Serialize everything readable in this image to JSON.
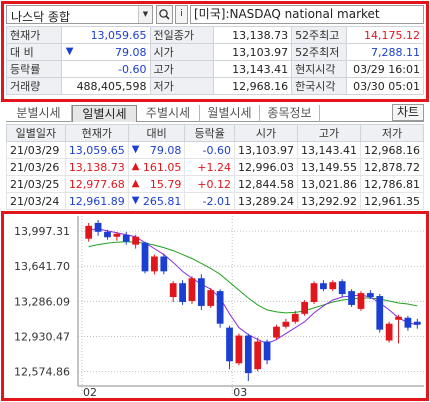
{
  "search": {
    "selected_stock": "나스닥 종합",
    "market_name": "[미국]:NASDAQ national market",
    "info_label": "i"
  },
  "quote": {
    "rows": [
      {
        "l1": "현재가",
        "v1": "13,059.65",
        "l2": "전일종가",
        "v2": "13,138.73",
        "l3": "52주최고",
        "v3": "14,175.12"
      },
      {
        "l1": "대  비",
        "v1": "79.08",
        "l2": "시가",
        "v2": "13,103.97",
        "l3": "52주최저",
        "v3": "7,288.11"
      },
      {
        "l1": "등락률",
        "v1": "-0.60",
        "l2": "고가",
        "v2": "13,143.41",
        "l3": "현지시각",
        "v3": "03/29 16:01"
      },
      {
        "l1": "거래량",
        "v1": "488,405,598",
        "l2": "저가",
        "v2": "12,968.16",
        "l3": "한국시각",
        "v3": "03/30 05:01"
      }
    ],
    "change_arrow": "▼"
  },
  "tabs": {
    "items": [
      "분별시세",
      "일별시세",
      "주별시세",
      "월별시세",
      "종목정보"
    ],
    "chart_button": "차트"
  },
  "daily": {
    "headers": [
      "일별일자",
      "현재가",
      "대비",
      "등락율",
      "시가",
      "고가",
      "저가"
    ],
    "rows": [
      {
        "date": "21/03/29",
        "price": "13,059.65",
        "arrow": "▼",
        "change": "79.08",
        "rate": "-0.60",
        "open": "13,103.97",
        "high": "13,143.41",
        "low": "12,968.16",
        "dir": "down"
      },
      {
        "date": "21/03/26",
        "price": "13,138.73",
        "arrow": "▲",
        "change": "161.05",
        "rate": "+1.24",
        "open": "12,996.03",
        "high": "13,149.55",
        "low": "12,878.72",
        "dir": "up"
      },
      {
        "date": "21/03/25",
        "price": "12,977.68",
        "arrow": "▲",
        "change": "15.79",
        "rate": "+0.12",
        "open": "12,844.58",
        "high": "13,021.86",
        "low": "12,786.81",
        "dir": "up"
      },
      {
        "date": "21/03/24",
        "price": "12,961.89",
        "arrow": "▼",
        "change": "265.81",
        "rate": "-2.01",
        "open": "13,289.24",
        "high": "13,292.92",
        "low": "12,961.35",
        "dir": "down"
      }
    ]
  },
  "colors": {
    "up": "#e0161c",
    "down": "#1b3fd0",
    "ma_short": "#8a2be2",
    "ma_long": "#1fa21f"
  },
  "chart_data": {
    "type": "candlestick",
    "y_ticks": [
      "13,997.31",
      "13,641.70",
      "13,286.09",
      "12,930.47",
      "12,574.86"
    ],
    "x_labels": [
      "02",
      "03"
    ],
    "ylim": [
      12450,
      14150
    ],
    "candles": [
      {
        "o": 13920,
        "c": 14050,
        "h": 14080,
        "l": 13890
      },
      {
        "o": 14080,
        "c": 13990,
        "h": 14110,
        "l": 13950
      },
      {
        "o": 13990,
        "c": 13935,
        "h": 14010,
        "l": 13910
      },
      {
        "o": 13940,
        "c": 13970,
        "h": 13985,
        "l": 13900
      },
      {
        "o": 13960,
        "c": 13890,
        "h": 13990,
        "l": 13860
      },
      {
        "o": 13860,
        "c": 13940,
        "h": 13960,
        "l": 13820
      },
      {
        "o": 13880,
        "c": 13590,
        "h": 13890,
        "l": 13570
      },
      {
        "o": 13590,
        "c": 13740,
        "h": 13760,
        "l": 13560
      },
      {
        "o": 13740,
        "c": 13590,
        "h": 13770,
        "l": 13560
      },
      {
        "o": 13330,
        "c": 13470,
        "h": 13490,
        "l": 13280
      },
      {
        "o": 13470,
        "c": 13280,
        "h": 13500,
        "l": 13250
      },
      {
        "o": 13290,
        "c": 13520,
        "h": 13540,
        "l": 13260
      },
      {
        "o": 13520,
        "c": 13240,
        "h": 13560,
        "l": 13200
      },
      {
        "o": 13240,
        "c": 13400,
        "h": 13420,
        "l": 13220
      },
      {
        "o": 13390,
        "c": 13060,
        "h": 13410,
        "l": 13020
      },
      {
        "o": 13020,
        "c": 12680,
        "h": 13040,
        "l": 12600
      },
      {
        "o": 12660,
        "c": 12940,
        "h": 12960,
        "l": 12640
      },
      {
        "o": 12940,
        "c": 12560,
        "h": 12960,
        "l": 12480
      },
      {
        "o": 12600,
        "c": 12880,
        "h": 12920,
        "l": 12580
      },
      {
        "o": 12880,
        "c": 12690,
        "h": 12900,
        "l": 12650
      },
      {
        "o": 12920,
        "c": 13030,
        "h": 13050,
        "l": 12900
      },
      {
        "o": 13030,
        "c": 13080,
        "h": 13110,
        "l": 13010
      },
      {
        "o": 13080,
        "c": 13160,
        "h": 13190,
        "l": 13060
      },
      {
        "o": 13160,
        "c": 13280,
        "h": 13300,
        "l": 13140
      },
      {
        "o": 13280,
        "c": 13470,
        "h": 13490,
        "l": 13260
      },
      {
        "o": 13470,
        "c": 13410,
        "h": 13500,
        "l": 13390
      },
      {
        "o": 13410,
        "c": 13480,
        "h": 13500,
        "l": 13390
      },
      {
        "o": 13490,
        "c": 13360,
        "h": 13510,
        "l": 13330
      },
      {
        "o": 13390,
        "c": 13250,
        "h": 13410,
        "l": 13230
      },
      {
        "o": 13210,
        "c": 13370,
        "h": 13390,
        "l": 13190
      },
      {
        "o": 13370,
        "c": 13330,
        "h": 13400,
        "l": 13310
      },
      {
        "o": 13340,
        "c": 13000,
        "h": 13360,
        "l": 12970
      },
      {
        "o": 12890,
        "c": 13060,
        "h": 13080,
        "l": 12870
      },
      {
        "o": 13100,
        "c": 13130,
        "h": 13150,
        "l": 12860
      },
      {
        "o": 13120,
        "c": 13020,
        "h": 13140,
        "l": 12990
      },
      {
        "o": 13080,
        "c": 13050,
        "h": 13110,
        "l": 13010
      }
    ],
    "ma_short": [
      14010,
      14020,
      14000,
      13980,
      13960,
      13940,
      13880,
      13820,
      13760,
      13680,
      13590,
      13520,
      13460,
      13410,
      13320,
      13160,
      13020,
      12950,
      12900,
      12860,
      12900,
      12960,
      13020,
      13080,
      13170,
      13240,
      13300,
      13330,
      13340,
      13350,
      13330,
      13270,
      13200,
      13120,
      13070,
      13050
    ],
    "ma_long": [
      13840,
      13860,
      13875,
      13885,
      13890,
      13885,
      13875,
      13855,
      13830,
      13800,
      13760,
      13720,
      13670,
      13620,
      13560,
      13480,
      13400,
      13320,
      13250,
      13200,
      13180,
      13170,
      13175,
      13190,
      13220,
      13250,
      13280,
      13300,
      13310,
      13320,
      13320,
      13310,
      13290,
      13270,
      13260,
      13240
    ]
  }
}
